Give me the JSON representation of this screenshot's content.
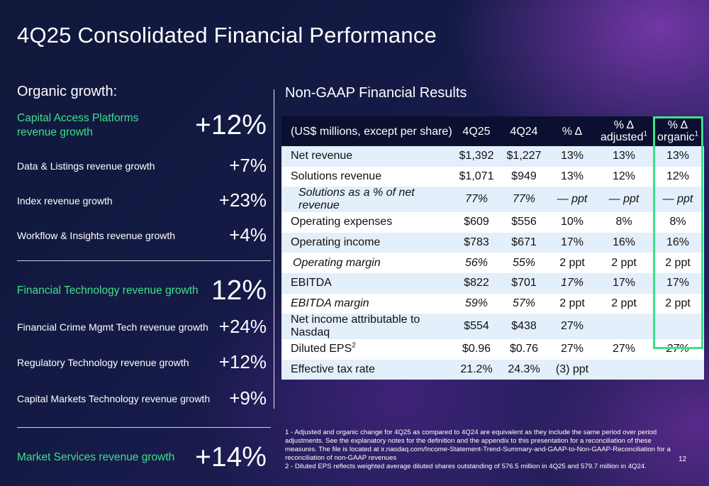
{
  "slide": {
    "title": "4Q25 Consolidated Financial Performance",
    "page_number": "12"
  },
  "left": {
    "heading": "Organic growth:",
    "rows": [
      {
        "label": "Capital Access Platforms revenue growth",
        "value": "+12%"
      },
      {
        "label": "Data & Listings revenue growth",
        "value": "+7%"
      },
      {
        "label": "Index revenue growth",
        "value": "+23%"
      },
      {
        "label": "Workflow & Insights revenue growth",
        "value": "+4%"
      },
      {
        "label": "Financial Technology revenue growth",
        "value": "12%"
      },
      {
        "label": "Financial Crime Mgmt Tech revenue growth",
        "value": "+24%"
      },
      {
        "label": "Regulatory Technology revenue growth",
        "value": "+12%"
      },
      {
        "label": "Capital Markets Technology revenue growth",
        "value": "+9%"
      },
      {
        "label": "Market Services revenue growth",
        "value": "+14%"
      }
    ]
  },
  "right": {
    "heading": "Non-GAAP Financial Results",
    "columns": {
      "label": "(US$ millions, except per share)",
      "c1": "4Q25",
      "c2": "4Q24",
      "c3": "% Δ",
      "c4_line1": "% Δ",
      "c4_line2": "adjusted",
      "c4_sup": "1",
      "c5_line1": "% Δ",
      "c5_line2": "organic",
      "c5_sup": "1"
    },
    "rows": [
      {
        "label": "Net revenue",
        "c1": "$1,392",
        "c2": "$1,227",
        "c3": "13%",
        "c4": "13%",
        "c5": "13%"
      },
      {
        "label": "Solutions revenue",
        "c1": "$1,071",
        "c2": "$949",
        "c3": "13%",
        "c4": "12%",
        "c5": "12%"
      },
      {
        "label": "Solutions as a % of net revenue",
        "c1": "77%",
        "c2": "77%",
        "c3": "— ppt",
        "c4": "— ppt",
        "c5": "— ppt"
      },
      {
        "label": "Operating expenses",
        "c1": "$609",
        "c2": "$556",
        "c3": "10%",
        "c4": "8%",
        "c5": "8%"
      },
      {
        "label": "Operating income",
        "c1": "$783",
        "c2": "$671",
        "c3": "17%",
        "c4": "16%",
        "c5": "16%"
      },
      {
        "label": "Operating margin",
        "c1": "56%",
        "c2": "55%",
        "c3": "2 ppt",
        "c4": "2 ppt",
        "c5": "2 ppt"
      },
      {
        "label": "EBITDA",
        "c1": "$822",
        "c2": "$701",
        "c3": "17%",
        "c4": "17%",
        "c5": "17%"
      },
      {
        "label": "EBITDA margin",
        "c1": "59%",
        "c2": "57%",
        "c3": "2 ppt",
        "c4": "2 ppt",
        "c5": "2 ppt"
      },
      {
        "label": "Net income attributable to Nasdaq",
        "c1": "$554",
        "c2": "$438",
        "c3": "27%",
        "c4": "",
        "c5": ""
      },
      {
        "label": "Diluted EPS",
        "label_sup": "2",
        "c1": "$0.96",
        "c2": "$0.76",
        "c3": "27%",
        "c4": "27%",
        "c5": "27%"
      },
      {
        "label": "Effective tax rate",
        "c1": "21.2%",
        "c2": "24.3%",
        "c3": "(3) ppt",
        "c4": "",
        "c5": ""
      }
    ],
    "highlight_color": "#3ee08a"
  },
  "footnotes": {
    "note1": "1 - Adjusted and organic change for 4Q25 as compared to 4Q24 are equivalent as they include the same period over period adjustments. See the explanatory notes for the definition and the appendix to this presentation for a reconciliation of these measures. The file is located at ir.nasdaq.com/Income-Statement-Trend-Summary-and-GAAP-to-Non-GAAP-Reconciliation for a reconciliation of non-GAAP revenues",
    "note2": "2 - Diluted EPS reflects weighted average diluted shares outstanding of 576.5 million in 4Q25 and 579.7 million in 4Q24."
  },
  "colors": {
    "accent_green": "#3ee08a",
    "header_navy": "#0b1030",
    "row_alt": "#e3effb"
  }
}
